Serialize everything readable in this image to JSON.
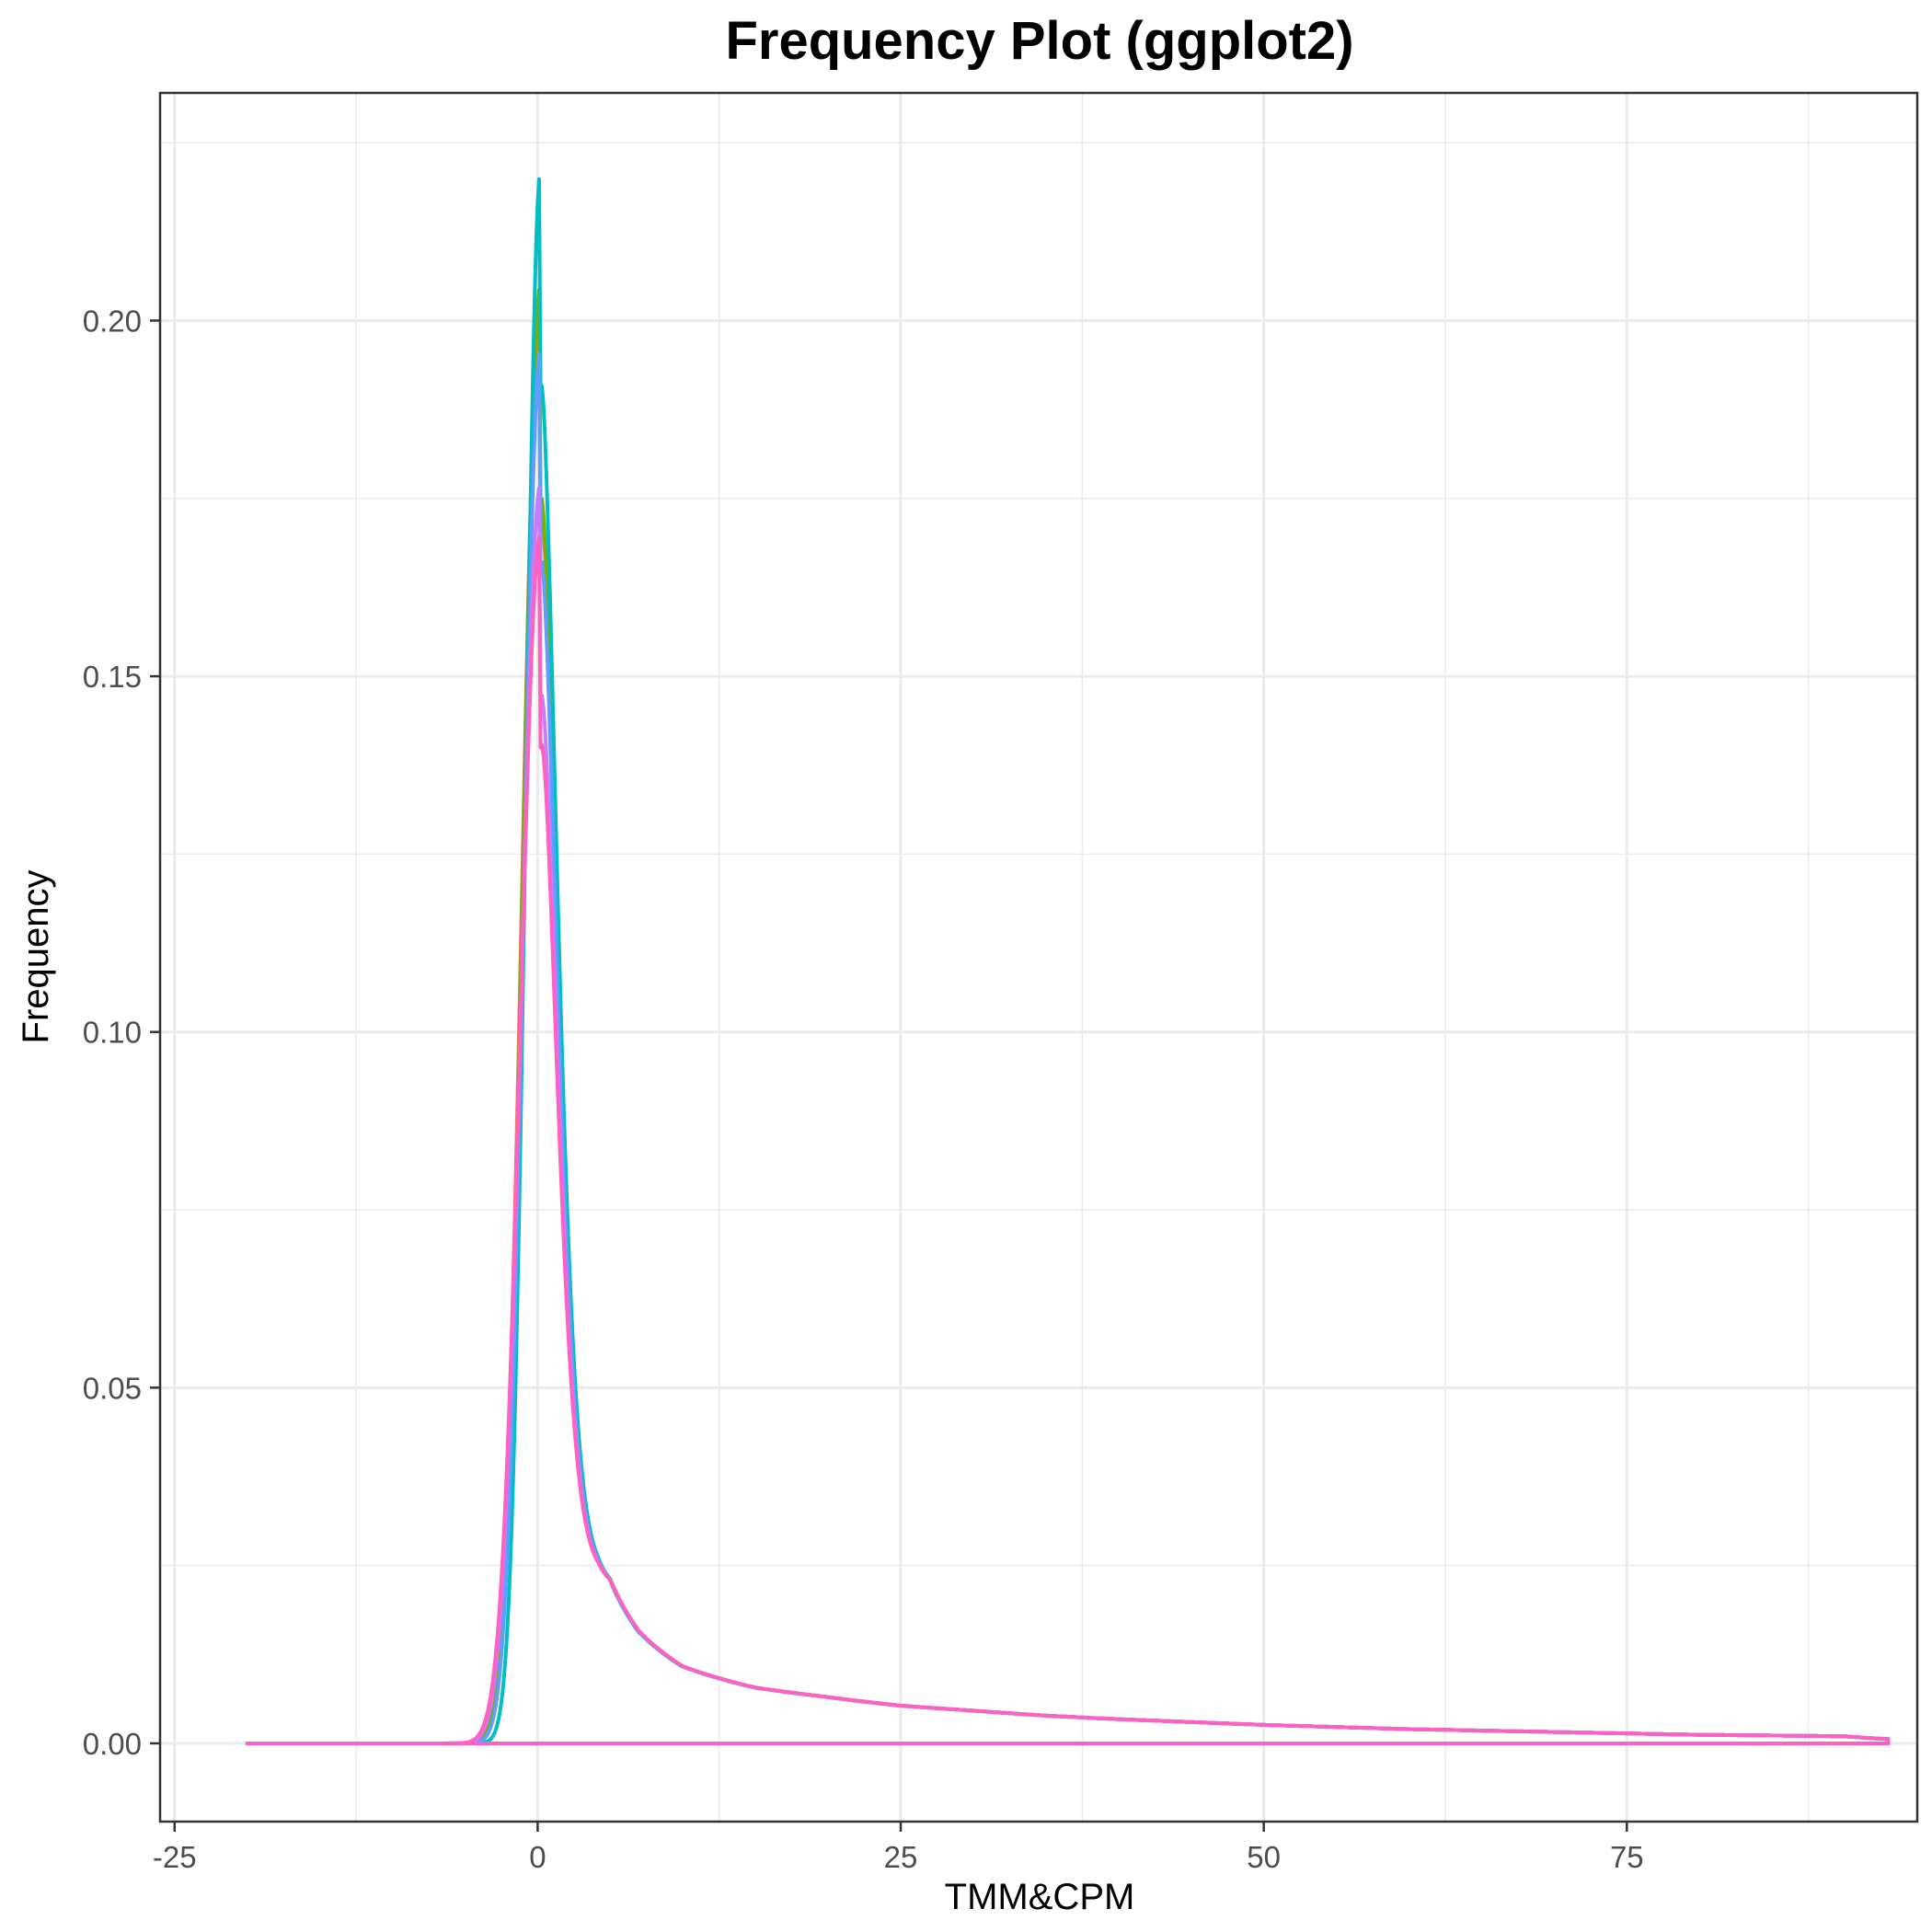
{
  "chart_data": {
    "type": "line",
    "title": "Frequency Plot (ggplot2)",
    "xlabel": "TMM&CPM",
    "ylabel": "Frequency",
    "xlim": [
      -26,
      95
    ],
    "ylim": [
      -0.011,
      0.232
    ],
    "x_ticks": [
      -25,
      0,
      25,
      50,
      75
    ],
    "x_tick_labels": [
      "-25",
      "0",
      "25",
      "50",
      "75"
    ],
    "y_ticks": [
      0,
      0.05,
      0.1,
      0.15,
      0.2
    ],
    "y_tick_labels": [
      "0.00",
      "0.05",
      "0.10",
      "0.15",
      "0.20"
    ],
    "grid": true,
    "legend": "none",
    "series": [
      {
        "color": "#F8766D",
        "peak": 0.203,
        "peak_x": 0.2,
        "left_width": 1.25,
        "shift": 0
      },
      {
        "color": "#7CAE00",
        "peak": 0.205,
        "peak_x": 0.2,
        "left_width": 1.2,
        "shift": 0
      },
      {
        "color": "#00BFC4",
        "peak": 0.221,
        "peak_x": 0.2,
        "left_width": 1.0,
        "shift": 0.5
      },
      {
        "color": "#619CFF",
        "peak": 0.196,
        "peak_x": 0.2,
        "left_width": 1.15,
        "shift": 0.3
      },
      {
        "color": "#C77CFF",
        "peak": 0.177,
        "peak_x": 0.2,
        "left_width": 1.3,
        "shift": 0
      },
      {
        "color": "#FF61C3",
        "peak": 0.17,
        "peak_x": 0.2,
        "left_width": 1.35,
        "shift": 0
      }
    ],
    "common_x_range": [
      -20,
      93
    ],
    "tail_values": [
      {
        "x": 5,
        "y": 0.02
      },
      {
        "x": 7,
        "y": 0.0145
      },
      {
        "x": 10,
        "y": 0.0105
      },
      {
        "x": 15,
        "y": 0.0078
      },
      {
        "x": 20,
        "y": 0.0065
      },
      {
        "x": 25,
        "y": 0.0053
      },
      {
        "x": 30,
        "y": 0.0046
      },
      {
        "x": 35,
        "y": 0.0039
      },
      {
        "x": 40,
        "y": 0.0034
      },
      {
        "x": 45,
        "y": 0.003
      },
      {
        "x": 50,
        "y": 0.0026
      },
      {
        "x": 55,
        "y": 0.0023
      },
      {
        "x": 60,
        "y": 0.002
      },
      {
        "x": 65,
        "y": 0.0018
      },
      {
        "x": 70,
        "y": 0.0016
      },
      {
        "x": 75,
        "y": 0.0014
      },
      {
        "x": 80,
        "y": 0.0012
      },
      {
        "x": 85,
        "y": 0.0011
      },
      {
        "x": 90,
        "y": 0.001
      },
      {
        "x": 93,
        "y": 0.0006
      }
    ]
  }
}
